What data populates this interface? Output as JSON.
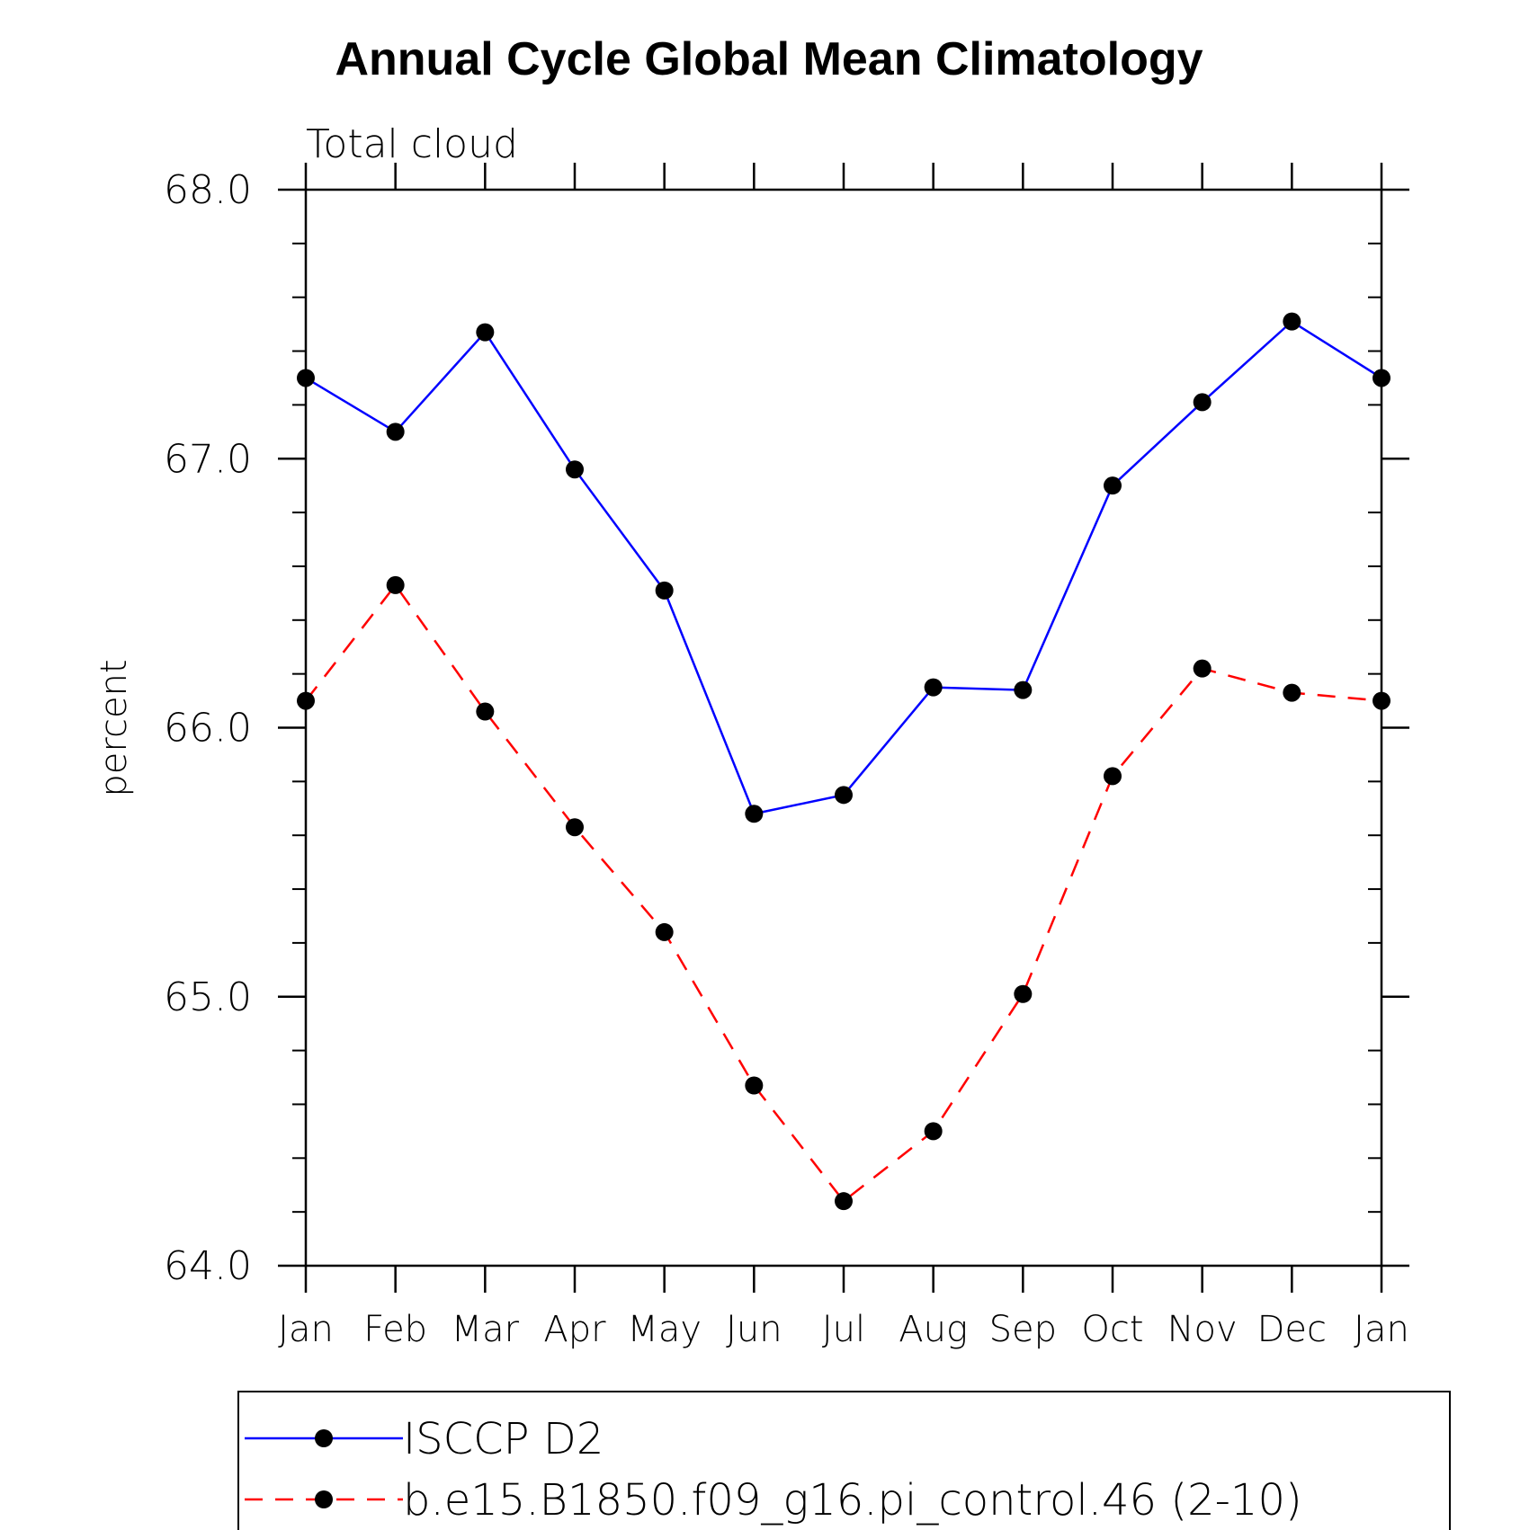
{
  "chart_data": {
    "type": "line",
    "title": "Annual Cycle Global Mean Climatology",
    "subtitle": "Total cloud",
    "xlabel": "",
    "ylabel": "percent",
    "categories": [
      "Jan",
      "Feb",
      "Mar",
      "Apr",
      "May",
      "Jun",
      "Jul",
      "Aug",
      "Sep",
      "Oct",
      "Nov",
      "Dec",
      "Jan"
    ],
    "ylim": [
      64.0,
      68.0
    ],
    "yticks": [
      "64.0",
      "65.0",
      "66.0",
      "67.0",
      "68.0"
    ],
    "y_minor_step": 0.2,
    "legend_position": "bottom",
    "series": [
      {
        "name": "ISCCP D2",
        "color": "#0000ff",
        "dash": "solid",
        "marker": "filled-circle",
        "values": [
          67.3,
          67.1,
          67.47,
          66.96,
          66.51,
          65.68,
          65.75,
          66.15,
          66.14,
          66.9,
          67.21,
          67.51,
          67.3
        ]
      },
      {
        "name": "b.e15.B1850.f09_g16.pi_control.46 (2-10)",
        "color": "#ff0000",
        "dash": "dashed",
        "marker": "filled-circle",
        "values": [
          66.1,
          66.53,
          66.06,
          65.63,
          65.24,
          64.67,
          64.24,
          64.5,
          65.01,
          65.82,
          66.22,
          66.13,
          66.1
        ]
      }
    ]
  }
}
